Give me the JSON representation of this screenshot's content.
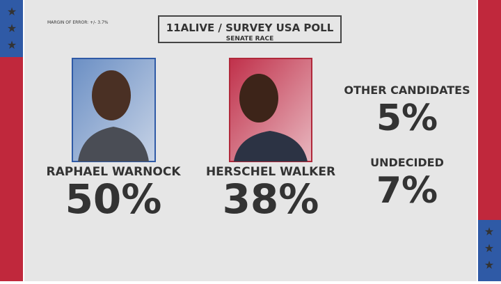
{
  "header": {
    "note": "MARGIN OF ERROR: +/- 3.7%",
    "title": "11ALIVE / SURVEY USA POLL",
    "subtitle": "SENATE RACE"
  },
  "candidates": [
    {
      "name": "RAPHAEL WARNOCK",
      "share": "50%"
    },
    {
      "name": "HERSCHEL WALKER",
      "share": "38%"
    }
  ],
  "others": [
    {
      "label": "OTHER CANDIDATES",
      "share": "5%"
    },
    {
      "label": "UNDECIDED",
      "share": "7%"
    }
  ]
}
